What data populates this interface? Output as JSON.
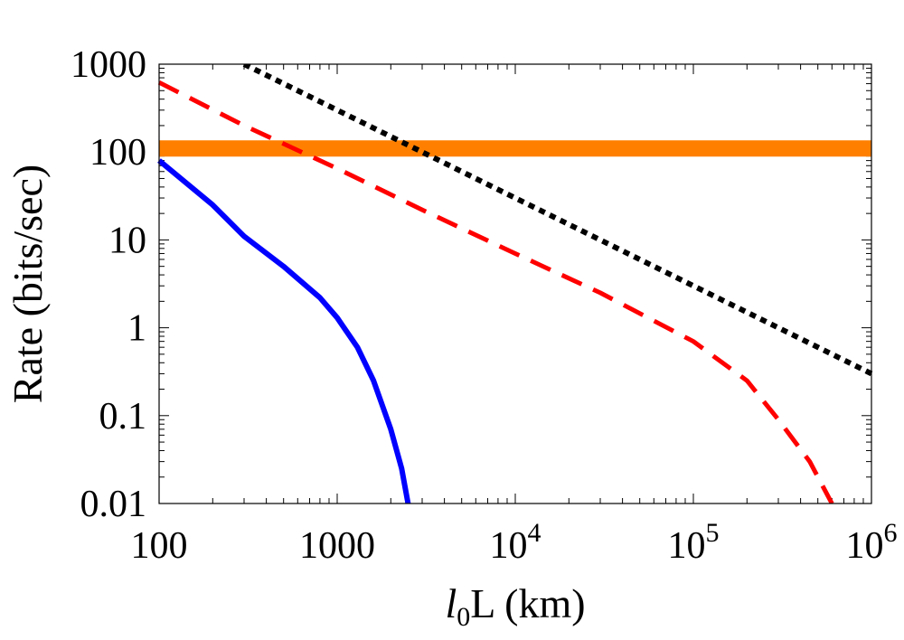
{
  "chart_data": {
    "type": "line",
    "title": "",
    "xlabel": "l0L (km)",
    "xlabel_parts": {
      "italic": "l",
      "sub": "0",
      "rest": "L (km)"
    },
    "ylabel": "Rate (bits/sec)",
    "xscale": "log",
    "yscale": "log",
    "xlim": [
      100,
      1000000
    ],
    "ylim": [
      0.01,
      1000
    ],
    "x_ticks": [
      {
        "value": 100,
        "label": "100"
      },
      {
        "value": 1000,
        "label": "1000"
      },
      {
        "value": 10000,
        "label": "10",
        "exp": "4"
      },
      {
        "value": 100000,
        "label": "10",
        "exp": "5"
      },
      {
        "value": 1000000,
        "label": "10",
        "exp": "6"
      }
    ],
    "y_ticks": [
      {
        "value": 1000,
        "label": "1000"
      },
      {
        "value": 100,
        "label": "100"
      },
      {
        "value": 10,
        "label": "10"
      },
      {
        "value": 1,
        "label": "1"
      },
      {
        "value": 0.1,
        "label": "0.1"
      },
      {
        "value": 0.01,
        "label": "0.01"
      }
    ],
    "grid": false,
    "legend": "none",
    "series": [
      {
        "name": "orange-band",
        "color": "#ff8000",
        "style": "solid-thick",
        "x": [
          100,
          1000000
        ],
        "y": [
          110,
          110
        ]
      },
      {
        "name": "black-dotted",
        "color": "#000000",
        "style": "dotted",
        "x": [
          300,
          1000,
          10000,
          100000,
          1000000
        ],
        "y": [
          1000,
          300,
          30,
          3,
          0.3
        ]
      },
      {
        "name": "red-dashed",
        "color": "#ff0000",
        "style": "dashed",
        "x": [
          100,
          300,
          1000,
          3000,
          10000,
          30000,
          100000,
          200000,
          300000,
          450000,
          600000
        ],
        "y": [
          620,
          200,
          65,
          22,
          7,
          2.5,
          0.7,
          0.25,
          0.09,
          0.03,
          0.01
        ]
      },
      {
        "name": "blue-solid",
        "color": "#0000ff",
        "style": "solid",
        "x": [
          100,
          200,
          300,
          500,
          800,
          1000,
          1300,
          1600,
          2000,
          2300,
          2500
        ],
        "y": [
          80,
          25,
          11,
          5,
          2.2,
          1.3,
          0.6,
          0.25,
          0.07,
          0.025,
          0.01
        ]
      }
    ]
  }
}
